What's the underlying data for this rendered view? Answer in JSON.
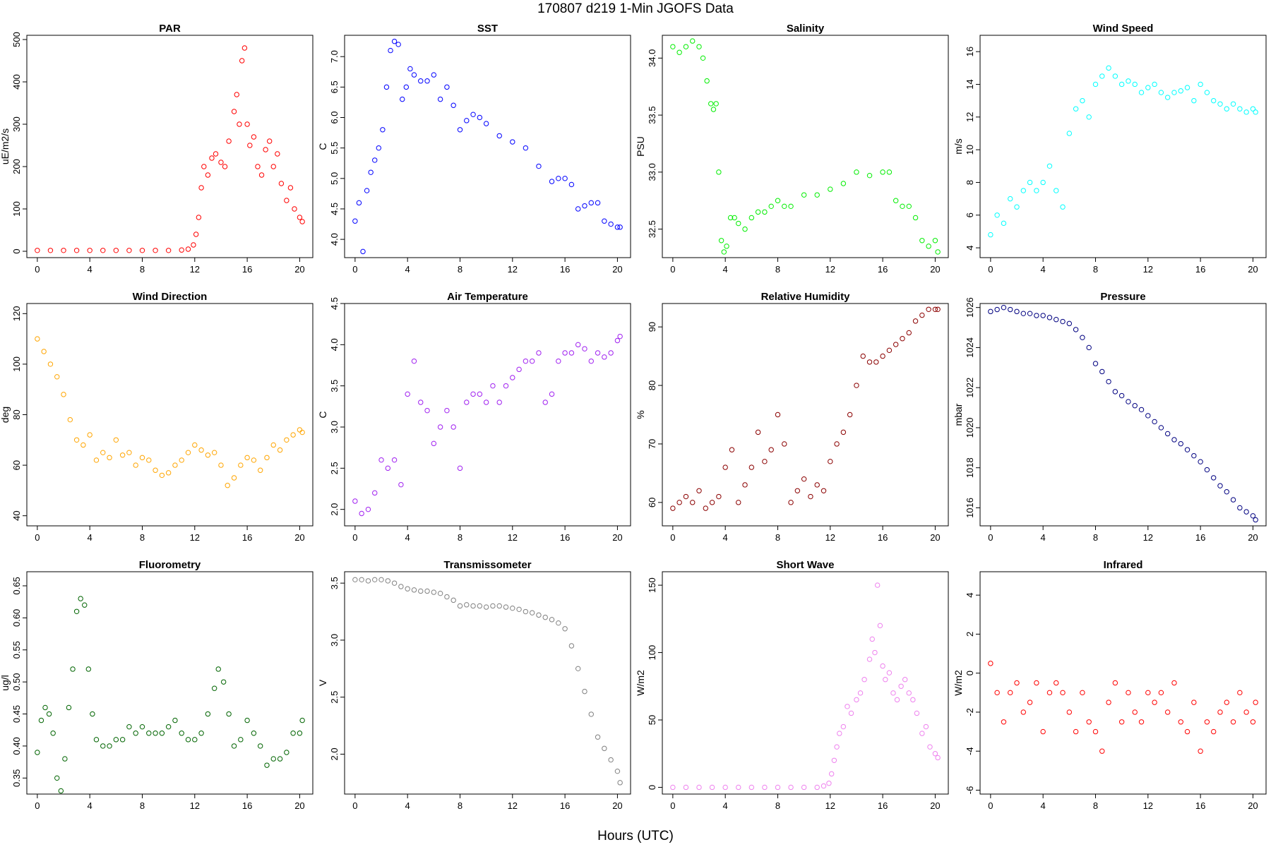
{
  "title": "170807   d219   1-Min  JGOFS Data",
  "xlabel": "Hours (UTC)",
  "chart_data": [
    {
      "type": "scatter",
      "title": "PAR",
      "ylabel": "uE/m2/s",
      "color": "#ff0000",
      "ylim": [
        -15,
        510
      ],
      "yticks": [
        0,
        100,
        200,
        300,
        400,
        500
      ],
      "xlim": [
        -0.8,
        21
      ],
      "xticks": [
        0,
        4,
        8,
        12,
        16,
        20
      ],
      "x": [
        0,
        1,
        2,
        3,
        4,
        5,
        6,
        7,
        8,
        9,
        10,
        11,
        11.5,
        11.9,
        12.1,
        12.3,
        12.5,
        12.7,
        13,
        13.3,
        13.6,
        14,
        14.3,
        14.6,
        15,
        15.2,
        15.4,
        15.6,
        15.8,
        16,
        16.2,
        16.5,
        16.8,
        17.1,
        17.4,
        17.7,
        18,
        18.3,
        18.6,
        19,
        19.3,
        19.6,
        20,
        20.2
      ],
      "y": [
        2,
        2,
        2,
        2,
        2,
        2,
        2,
        2,
        2,
        2,
        2,
        3,
        5,
        15,
        40,
        80,
        150,
        200,
        180,
        220,
        230,
        210,
        200,
        260,
        330,
        370,
        300,
        450,
        480,
        300,
        250,
        270,
        200,
        180,
        240,
        260,
        200,
        230,
        160,
        120,
        150,
        100,
        80,
        70
      ]
    },
    {
      "type": "scatter",
      "title": "SST",
      "ylabel": "C",
      "color": "#0000ff",
      "ylim": [
        3.7,
        7.35
      ],
      "yticks": [
        4.0,
        4.5,
        5.0,
        5.5,
        6.0,
        6.5,
        7.0
      ],
      "xlim": [
        -0.8,
        21
      ],
      "xticks": [
        0,
        4,
        8,
        12,
        16,
        20
      ],
      "x": [
        0,
        0.3,
        0.6,
        0.9,
        1.2,
        1.5,
        1.8,
        2.1,
        2.4,
        2.7,
        3.0,
        3.3,
        3.6,
        3.9,
        4.2,
        4.5,
        5.0,
        5.5,
        6.0,
        6.5,
        7.0,
        7.5,
        8.0,
        8.5,
        9.0,
        9.5,
        10,
        11,
        12,
        13,
        14,
        15,
        15.5,
        16,
        16.5,
        17,
        17.5,
        18,
        18.5,
        19,
        19.5,
        20,
        20.2
      ],
      "y": [
        4.3,
        4.6,
        3.8,
        4.8,
        5.1,
        5.3,
        5.5,
        5.8,
        6.5,
        7.1,
        7.25,
        7.2,
        6.3,
        6.5,
        6.8,
        6.7,
        6.6,
        6.6,
        6.7,
        6.3,
        6.5,
        6.2,
        5.8,
        5.95,
        6.05,
        6.0,
        5.9,
        5.7,
        5.6,
        5.5,
        5.2,
        4.95,
        5.0,
        5.0,
        4.9,
        4.5,
        4.55,
        4.6,
        4.6,
        4.3,
        4.25,
        4.2,
        4.2
      ]
    },
    {
      "type": "scatter",
      "title": "Salinity",
      "ylabel": "PSU",
      "color": "#00ee00",
      "ylim": [
        32.25,
        34.2
      ],
      "yticks": [
        32.5,
        33.0,
        33.5,
        34.0
      ],
      "xlim": [
        -0.8,
        21
      ],
      "xticks": [
        0,
        4,
        8,
        12,
        16,
        20
      ],
      "x": [
        0,
        0.5,
        1,
        1.5,
        2,
        2.3,
        2.6,
        2.9,
        3.1,
        3.3,
        3.5,
        3.7,
        3.9,
        4.1,
        4.4,
        4.7,
        5,
        5.5,
        6,
        6.5,
        7,
        7.5,
        8,
        8.5,
        9,
        10,
        11,
        12,
        13,
        14,
        15,
        16,
        16.5,
        17,
        17.5,
        18,
        18.5,
        19,
        19.5,
        20,
        20.2
      ],
      "y": [
        34.1,
        34.05,
        34.1,
        34.15,
        34.1,
        34.0,
        33.8,
        33.6,
        33.55,
        33.6,
        33.0,
        32.4,
        32.3,
        32.35,
        32.6,
        32.6,
        32.55,
        32.5,
        32.6,
        32.65,
        32.65,
        32.7,
        32.75,
        32.7,
        32.7,
        32.8,
        32.8,
        32.85,
        32.9,
        33.0,
        32.97,
        33.0,
        33.0,
        32.75,
        32.7,
        32.7,
        32.6,
        32.4,
        32.35,
        32.4,
        32.3
      ]
    },
    {
      "type": "scatter",
      "title": "Wind Speed",
      "ylabel": "m/s",
      "color": "#00ffff",
      "ylim": [
        3.4,
        17
      ],
      "yticks": [
        4,
        6,
        8,
        10,
        12,
        14,
        16
      ],
      "xlim": [
        -0.8,
        21
      ],
      "xticks": [
        0,
        4,
        8,
        12,
        16,
        20
      ],
      "x": [
        0,
        0.5,
        1,
        1.5,
        2,
        2.5,
        3,
        3.5,
        4,
        4.5,
        5,
        5.5,
        6,
        6.5,
        7,
        7.5,
        8,
        8.5,
        9,
        9.5,
        10,
        10.5,
        11,
        11.5,
        12,
        12.5,
        13,
        13.5,
        14,
        14.5,
        15,
        15.5,
        16,
        16.5,
        17,
        17.5,
        18,
        18.5,
        19,
        19.5,
        20,
        20.2
      ],
      "y": [
        4.8,
        6,
        5.5,
        7,
        6.5,
        7.5,
        8,
        7.5,
        8,
        9,
        7.5,
        6.5,
        11,
        12.5,
        13,
        12,
        14,
        14.5,
        15,
        14.5,
        14,
        14.2,
        14,
        13.5,
        13.8,
        14,
        13.5,
        13.2,
        13.5,
        13.6,
        13.8,
        13,
        14,
        13.5,
        13,
        12.8,
        12.5,
        12.8,
        12.5,
        12.3,
        12.5,
        12.3
      ]
    },
    {
      "type": "scatter",
      "title": "Wind Direction",
      "ylabel": "deg",
      "color": "#ffa500",
      "ylim": [
        36,
        124
      ],
      "yticks": [
        40,
        60,
        80,
        100,
        120
      ],
      "xlim": [
        -0.8,
        21
      ],
      "xticks": [
        0,
        4,
        8,
        12,
        16,
        20
      ],
      "x": [
        0,
        0.5,
        1,
        1.5,
        2,
        2.5,
        3,
        3.5,
        4,
        4.5,
        5,
        5.5,
        6,
        6.5,
        7,
        7.5,
        8,
        8.5,
        9,
        9.5,
        10,
        10.5,
        11,
        11.5,
        12,
        12.5,
        13,
        13.5,
        14,
        14.5,
        15,
        15.5,
        16,
        16.5,
        17,
        17.5,
        18,
        18.5,
        19,
        19.5,
        20,
        20.2
      ],
      "y": [
        110,
        105,
        100,
        95,
        88,
        78,
        70,
        68,
        72,
        62,
        65,
        63,
        70,
        64,
        65,
        60,
        63,
        62,
        58,
        56,
        57,
        60,
        62,
        65,
        68,
        66,
        64,
        65,
        60,
        52,
        55,
        60,
        63,
        62,
        58,
        63,
        68,
        66,
        70,
        72,
        74,
        73
      ]
    },
    {
      "type": "scatter",
      "title": "Air Temperature",
      "ylabel": "C",
      "color": "#a020f0",
      "ylim": [
        1.8,
        4.5
      ],
      "yticks": [
        2.0,
        2.5,
        3.0,
        3.5,
        4.0,
        4.5
      ],
      "xlim": [
        -0.8,
        21
      ],
      "xticks": [
        0,
        4,
        8,
        12,
        16,
        20
      ],
      "x": [
        0,
        0.5,
        1,
        1.5,
        2,
        2.5,
        3,
        3.5,
        4,
        4.5,
        5,
        5.5,
        6,
        6.5,
        7,
        7.5,
        8,
        8.5,
        9,
        9.5,
        10,
        10.5,
        11,
        11.5,
        12,
        12.5,
        13,
        13.5,
        14,
        14.5,
        15,
        15.5,
        16,
        16.5,
        17,
        17.5,
        18,
        18.5,
        19,
        19.5,
        20,
        20.2
      ],
      "y": [
        2.1,
        1.95,
        2.0,
        2.2,
        2.6,
        2.5,
        2.6,
        2.3,
        3.4,
        3.8,
        3.3,
        3.2,
        2.8,
        3.0,
        3.2,
        3.0,
        2.5,
        3.3,
        3.4,
        3.4,
        3.3,
        3.5,
        3.3,
        3.5,
        3.6,
        3.7,
        3.8,
        3.8,
        3.9,
        3.3,
        3.4,
        3.8,
        3.9,
        3.9,
        4.0,
        3.95,
        3.8,
        3.9,
        3.85,
        3.9,
        4.05,
        4.1
      ]
    },
    {
      "type": "scatter",
      "title": "Relative Humidity",
      "ylabel": "%",
      "color": "#8b0000",
      "ylim": [
        56,
        94
      ],
      "yticks": [
        60,
        70,
        80,
        90
      ],
      "xlim": [
        -0.8,
        21
      ],
      "xticks": [
        0,
        4,
        8,
        12,
        16,
        20
      ],
      "x": [
        0,
        0.5,
        1,
        1.5,
        2,
        2.5,
        3,
        3.5,
        4,
        4.5,
        5,
        5.5,
        6,
        6.5,
        7,
        7.5,
        8,
        8.5,
        9,
        9.5,
        10,
        10.5,
        11,
        11.5,
        12,
        12.5,
        13,
        13.5,
        14,
        14.5,
        15,
        15.5,
        16,
        16.5,
        17,
        17.5,
        18,
        18.5,
        19,
        19.5,
        20,
        20.2
      ],
      "y": [
        59,
        60,
        61,
        60,
        62,
        59,
        60,
        61,
        66,
        69,
        60,
        63,
        66,
        72,
        67,
        69,
        75,
        70,
        60,
        62,
        64,
        61,
        63,
        62,
        67,
        70,
        72,
        75,
        80,
        85,
        84,
        84,
        85,
        86,
        87,
        88,
        89,
        91,
        92,
        93,
        93,
        93
      ]
    },
    {
      "type": "scatter",
      "title": "Pressure",
      "ylabel": "mbar",
      "color": "#000080",
      "ylim": [
        1015.1,
        1026.2
      ],
      "yticks": [
        1016,
        1018,
        1020,
        1022,
        1024,
        1026
      ],
      "xlim": [
        -0.8,
        21
      ],
      "xticks": [
        0,
        4,
        8,
        12,
        16,
        20
      ],
      "x": [
        0,
        0.5,
        1,
        1.5,
        2,
        2.5,
        3,
        3.5,
        4,
        4.5,
        5,
        5.5,
        6,
        6.5,
        7,
        7.5,
        8,
        8.5,
        9,
        9.5,
        10,
        10.5,
        11,
        11.5,
        12,
        12.5,
        13,
        13.5,
        14,
        14.5,
        15,
        15.5,
        16,
        16.5,
        17,
        17.5,
        18,
        18.5,
        19,
        19.5,
        20,
        20.2
      ],
      "y": [
        1025.8,
        1025.9,
        1026.0,
        1025.9,
        1025.8,
        1025.7,
        1025.7,
        1025.6,
        1025.6,
        1025.5,
        1025.4,
        1025.3,
        1025.2,
        1024.9,
        1024.5,
        1024.0,
        1023.2,
        1022.8,
        1022.3,
        1021.8,
        1021.6,
        1021.3,
        1021.1,
        1020.9,
        1020.6,
        1020.3,
        1020.0,
        1019.7,
        1019.4,
        1019.2,
        1018.9,
        1018.6,
        1018.3,
        1017.9,
        1017.5,
        1017.1,
        1016.8,
        1016.4,
        1016.0,
        1015.8,
        1015.6,
        1015.4
      ]
    },
    {
      "type": "scatter",
      "title": "Fluorometry",
      "ylabel": "ug/l",
      "color": "#006400",
      "ylim": [
        0.325,
        0.672
      ],
      "yticks": [
        0.35,
        0.4,
        0.45,
        0.5,
        0.55,
        0.6,
        0.65
      ],
      "xlim": [
        -0.8,
        21
      ],
      "xticks": [
        0,
        4,
        8,
        12,
        16,
        20
      ],
      "x": [
        0,
        0.3,
        0.6,
        0.9,
        1.2,
        1.5,
        1.8,
        2.1,
        2.4,
        2.7,
        3.0,
        3.3,
        3.6,
        3.9,
        4.2,
        4.5,
        5.0,
        5.5,
        6.0,
        6.5,
        7.0,
        7.5,
        8.0,
        8.5,
        9.0,
        9.5,
        10,
        10.5,
        11,
        11.5,
        12,
        12.5,
        13,
        13.5,
        13.8,
        14.2,
        14.6,
        15,
        15.5,
        16,
        16.5,
        17,
        17.5,
        18,
        18.5,
        19,
        19.5,
        20,
        20.2
      ],
      "y": [
        0.39,
        0.44,
        0.46,
        0.45,
        0.42,
        0.35,
        0.33,
        0.38,
        0.46,
        0.52,
        0.61,
        0.63,
        0.62,
        0.52,
        0.45,
        0.41,
        0.4,
        0.4,
        0.41,
        0.41,
        0.43,
        0.42,
        0.43,
        0.42,
        0.42,
        0.42,
        0.43,
        0.44,
        0.42,
        0.41,
        0.41,
        0.42,
        0.45,
        0.49,
        0.52,
        0.5,
        0.45,
        0.4,
        0.41,
        0.44,
        0.42,
        0.4,
        0.37,
        0.38,
        0.38,
        0.39,
        0.42,
        0.42,
        0.44
      ]
    },
    {
      "type": "scatter",
      "title": "Transmissometer",
      "ylabel": "V",
      "color": "#808080",
      "ylim": [
        1.65,
        3.6
      ],
      "yticks": [
        2.0,
        2.5,
        3.0,
        3.5
      ],
      "xlim": [
        -0.8,
        21
      ],
      "xticks": [
        0,
        4,
        8,
        12,
        16,
        20
      ],
      "x": [
        0,
        0.5,
        1,
        1.5,
        2,
        2.5,
        3,
        3.5,
        4,
        4.5,
        5,
        5.5,
        6,
        6.5,
        7,
        7.5,
        8,
        8.5,
        9,
        9.5,
        10,
        10.5,
        11,
        11.5,
        12,
        12.5,
        13,
        13.5,
        14,
        14.5,
        15,
        15.5,
        16,
        16.5,
        17,
        17.5,
        18,
        18.5,
        19,
        19.5,
        20,
        20.2
      ],
      "y": [
        3.53,
        3.53,
        3.52,
        3.53,
        3.53,
        3.52,
        3.5,
        3.47,
        3.45,
        3.44,
        3.43,
        3.43,
        3.42,
        3.41,
        3.38,
        3.35,
        3.3,
        3.31,
        3.3,
        3.3,
        3.29,
        3.3,
        3.3,
        3.29,
        3.28,
        3.27,
        3.25,
        3.24,
        3.22,
        3.2,
        3.18,
        3.15,
        3.1,
        2.95,
        2.75,
        2.55,
        2.35,
        2.15,
        2.05,
        1.95,
        1.85,
        1.75
      ]
    },
    {
      "type": "scatter",
      "title": "Short Wave",
      "ylabel": "W/m2",
      "color": "#ee82ee",
      "ylim": [
        -5,
        160
      ],
      "yticks": [
        0,
        50,
        100,
        150
      ],
      "xlim": [
        -0.8,
        21
      ],
      "xticks": [
        0,
        4,
        8,
        12,
        16,
        20
      ],
      "x": [
        0,
        1,
        2,
        3,
        4,
        5,
        6,
        7,
        8,
        9,
        10,
        11,
        11.5,
        11.9,
        12.1,
        12.3,
        12.5,
        12.7,
        13,
        13.3,
        13.6,
        14,
        14.3,
        14.6,
        15,
        15.2,
        15.4,
        15.6,
        15.8,
        16,
        16.2,
        16.5,
        16.8,
        17.1,
        17.4,
        17.7,
        18,
        18.3,
        18.6,
        19,
        19.3,
        19.6,
        20,
        20.2
      ],
      "y": [
        0,
        0,
        0,
        0,
        0,
        0,
        0,
        0,
        0,
        0,
        0,
        0,
        1,
        3,
        10,
        20,
        30,
        40,
        45,
        60,
        55,
        65,
        70,
        80,
        95,
        110,
        100,
        150,
        120,
        90,
        80,
        85,
        70,
        65,
        75,
        80,
        70,
        65,
        55,
        40,
        45,
        30,
        25,
        22
      ]
    },
    {
      "type": "scatter",
      "title": "Infrared",
      "ylabel": "W/m2",
      "color": "#ff0000",
      "ylim": [
        -6.2,
        5.2
      ],
      "yticks": [
        -6,
        -4,
        -2,
        0,
        2,
        4
      ],
      "xlim": [
        -0.8,
        21
      ],
      "xticks": [
        0,
        4,
        8,
        12,
        16,
        20
      ],
      "x": [
        0,
        0.5,
        1,
        1.5,
        2,
        2.5,
        3,
        3.5,
        4,
        4.5,
        5,
        5.5,
        6,
        6.5,
        7,
        7.5,
        8,
        8.5,
        9,
        9.5,
        10,
        10.5,
        11,
        11.5,
        12,
        12.5,
        13,
        13.5,
        14,
        14.5,
        15,
        15.5,
        16,
        16.5,
        17,
        17.5,
        18,
        18.5,
        19,
        19.5,
        20,
        20.2
      ],
      "y": [
        0.5,
        -1,
        -2.5,
        -1,
        -0.5,
        -2,
        -1.5,
        -0.5,
        -3,
        -1,
        -0.5,
        -1,
        -2,
        -3,
        -1,
        -2.5,
        -3,
        -4,
        -1.5,
        -0.5,
        -2.5,
        -1,
        -2,
        -2.5,
        -1,
        -1.5,
        -1,
        -2,
        -0.5,
        -2.5,
        -3,
        -1.5,
        -4,
        -2.5,
        -3,
        -2,
        -1.5,
        -2.5,
        -1,
        -2,
        -2.5,
        -1.5
      ]
    }
  ]
}
